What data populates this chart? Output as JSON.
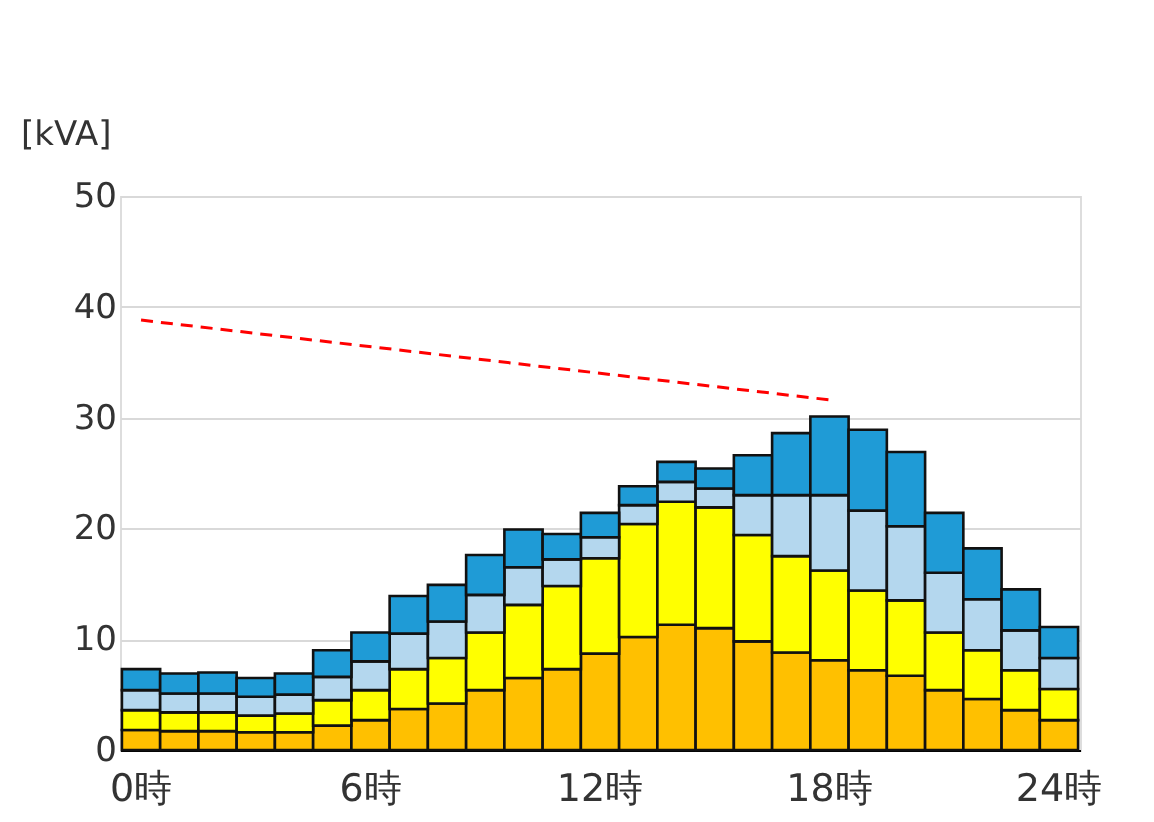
{
  "chart_data": {
    "type": "bar",
    "ylabel": "[kVA]",
    "stacked": true,
    "categories": [
      "0時",
      null,
      null,
      null,
      null,
      null,
      "6時",
      null,
      null,
      null,
      null,
      null,
      "12時",
      null,
      null,
      null,
      null,
      null,
      "18時",
      null,
      null,
      null,
      null,
      null,
      "24時"
    ],
    "series": [
      {
        "color": "#ffc000",
        "values": [
          1.8,
          1.7,
          1.7,
          1.6,
          1.6,
          2.2,
          2.7,
          3.7,
          4.2,
          5.4,
          6.5,
          7.3,
          8.7,
          10.2,
          11.3,
          11.0,
          9.8,
          8.8,
          8.1,
          7.2,
          6.7,
          5.4,
          4.6,
          3.6,
          2.7
        ]
      },
      {
        "color": "#ffff00",
        "values": [
          1.8,
          1.7,
          1.7,
          1.5,
          1.7,
          2.3,
          2.7,
          3.6,
          4.1,
          5.2,
          6.6,
          7.5,
          8.6,
          10.2,
          11.1,
          10.9,
          9.6,
          8.7,
          8.1,
          7.2,
          6.8,
          5.2,
          4.4,
          3.6,
          2.8
        ]
      },
      {
        "color": "#b4d7ee",
        "values": [
          1.8,
          1.7,
          1.7,
          1.7,
          1.7,
          2.1,
          2.6,
          3.2,
          3.3,
          3.4,
          3.4,
          2.4,
          1.9,
          1.7,
          1.8,
          1.7,
          3.6,
          5.5,
          6.8,
          7.2,
          6.7,
          5.4,
          4.6,
          3.6,
          2.8
        ]
      },
      {
        "color": "#1f9bd6",
        "values": [
          1.9,
          1.8,
          1.9,
          1.7,
          1.9,
          2.4,
          2.6,
          3.4,
          3.3,
          3.6,
          3.4,
          2.3,
          2.2,
          1.7,
          1.8,
          1.8,
          3.6,
          5.6,
          7.1,
          7.3,
          6.7,
          5.4,
          4.6,
          3.7,
          2.8
        ]
      },
      {
        "type": "line",
        "color": "#ff0000",
        "line_style": "dashed",
        "values": [
          38.8,
          null,
          null,
          null,
          null,
          null,
          null,
          null,
          null,
          null,
          null,
          null,
          null,
          null,
          null,
          null,
          null,
          null,
          31.6,
          null,
          null,
          null,
          null,
          null,
          null
        ]
      }
    ],
    "ylim": [
      0,
      50
    ],
    "yticks": [
      0,
      10,
      20,
      30,
      40,
      50
    ],
    "grid": "y"
  }
}
